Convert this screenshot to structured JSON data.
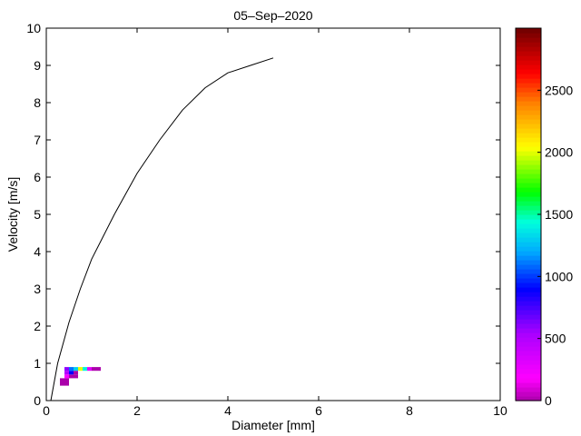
{
  "chart_data": {
    "type": "heatmap",
    "title": "05–Sep–2020",
    "xlabel": "Diameter [mm]",
    "ylabel": "Velocity [m/s]",
    "xlim": [
      0,
      10
    ],
    "ylim": [
      0,
      10
    ],
    "xticks": [
      "0",
      "2",
      "4",
      "6",
      "8",
      "10"
    ],
    "yticks": [
      "0",
      "1",
      "2",
      "3",
      "4",
      "5",
      "6",
      "7",
      "8",
      "9",
      "10"
    ],
    "grid": false,
    "colorbar": {
      "colormap": "hsv-reversed (magenta → blue → cyan → green → yellow → red → dark red)",
      "range": [
        0,
        3000
      ],
      "ticks": [
        "0",
        "500",
        "1000",
        "1500",
        "2000",
        "2500"
      ]
    },
    "cells": [
      {
        "x": [
          0.3,
          0.4
        ],
        "y": [
          0.4,
          0.5
        ],
        "value": 0
      },
      {
        "x": [
          0.3,
          0.4
        ],
        "y": [
          0.5,
          0.6
        ],
        "value": 0
      },
      {
        "x": [
          0.4,
          0.5
        ],
        "y": [
          0.4,
          0.5
        ],
        "value": 0
      },
      {
        "x": [
          0.4,
          0.5
        ],
        "y": [
          0.5,
          0.6
        ],
        "value": 0
      },
      {
        "x": [
          0.4,
          0.5
        ],
        "y": [
          0.6,
          0.7
        ],
        "value": 200
      },
      {
        "x": [
          0.4,
          0.5
        ],
        "y": [
          0.7,
          0.8
        ],
        "value": 500
      },
      {
        "x": [
          0.5,
          0.6
        ],
        "y": [
          0.6,
          0.7
        ],
        "value": 0
      },
      {
        "x": [
          0.6,
          0.7
        ],
        "y": [
          0.6,
          0.7
        ],
        "value": 0
      },
      {
        "x": [
          0.6,
          0.7
        ],
        "y": [
          0.7,
          0.8
        ],
        "value": 0
      },
      {
        "x": [
          0.5,
          0.6
        ],
        "y": [
          0.7,
          0.8
        ],
        "value": 900
      },
      {
        "x": [
          0.4,
          0.5
        ],
        "y": [
          0.8,
          0.9
        ],
        "value": 600
      },
      {
        "x": [
          0.5,
          0.6
        ],
        "y": [
          0.8,
          0.9
        ],
        "value": 1100
      },
      {
        "x": [
          0.6,
          0.7
        ],
        "y": [
          0.8,
          0.9
        ],
        "value": 1300
      },
      {
        "x": [
          0.7,
          0.8
        ],
        "y": [
          0.8,
          0.9
        ],
        "value": 2000
      },
      {
        "x": [
          0.8,
          0.9
        ],
        "y": [
          0.8,
          0.9
        ],
        "value": 1400
      },
      {
        "x": [
          0.9,
          1.0
        ],
        "y": [
          0.8,
          0.9
        ],
        "value": 300
      },
      {
        "x": [
          1.0,
          1.1
        ],
        "y": [
          0.8,
          0.9
        ],
        "value": 0
      },
      {
        "x": [
          1.1,
          1.2
        ],
        "y": [
          0.8,
          0.9
        ],
        "value": 0
      }
    ],
    "fit_line": {
      "x": [
        0.1,
        0.25,
        0.5,
        0.75,
        1.0,
        1.25,
        1.5,
        2.0,
        2.5,
        3.0,
        3.5,
        4.0,
        4.5,
        5.0
      ],
      "y": [
        0.0,
        1.0,
        2.1,
        3.0,
        3.8,
        4.4,
        5.0,
        6.1,
        7.0,
        7.8,
        8.4,
        8.8,
        9.0,
        9.2
      ]
    }
  }
}
